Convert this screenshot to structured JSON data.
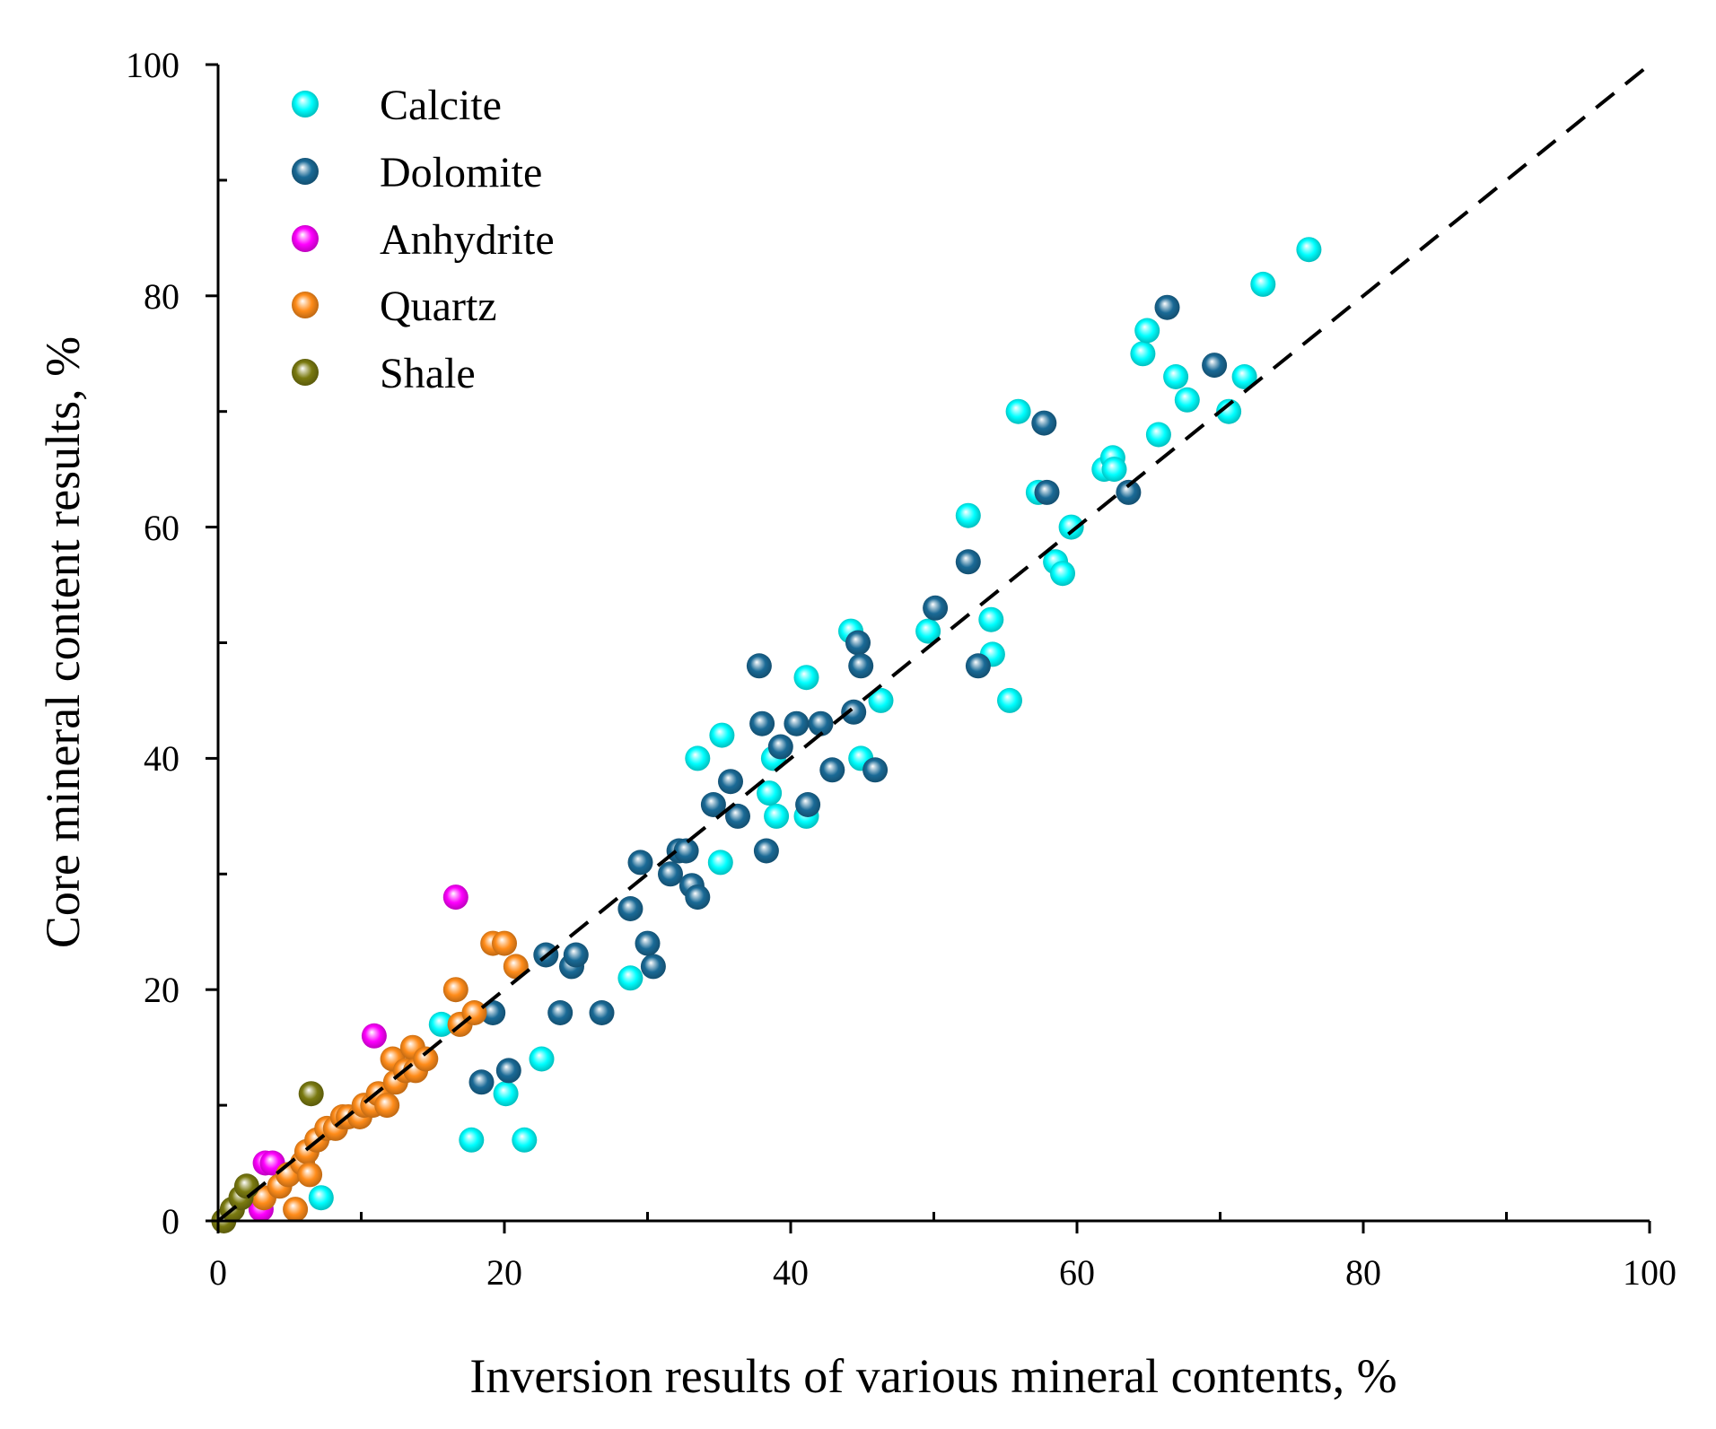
{
  "chart_data": {
    "type": "scatter",
    "xlabel": "Inversion results of various mineral contents, %",
    "ylabel": "Core mineral content results, %",
    "xlim": [
      0,
      100
    ],
    "ylim": [
      0,
      100
    ],
    "x_ticks": [
      "0",
      "20",
      "40",
      "60",
      "80",
      "100"
    ],
    "y_ticks": [
      "0",
      "20",
      "40",
      "60",
      "80",
      "100"
    ],
    "reference_line": {
      "style": "dashed",
      "color": "#000000",
      "x": [
        0,
        100
      ],
      "y": [
        0,
        100
      ]
    },
    "legend": {
      "position": "top-left"
    },
    "series": [
      {
        "name": "Calcite",
        "color": "#00ffff",
        "points": [
          [
            7.2,
            2
          ],
          [
            17.7,
            7
          ],
          [
            21.4,
            7
          ],
          [
            20.1,
            11
          ],
          [
            22.6,
            14
          ],
          [
            15.6,
            17
          ],
          [
            28.8,
            21
          ],
          [
            35.1,
            31
          ],
          [
            39.0,
            35
          ],
          [
            41.1,
            35
          ],
          [
            38.5,
            37
          ],
          [
            38.8,
            40
          ],
          [
            33.5,
            40
          ],
          [
            35.2,
            42
          ],
          [
            44.9,
            40
          ],
          [
            46.3,
            45
          ],
          [
            41.1,
            47
          ],
          [
            44.2,
            51
          ],
          [
            49.6,
            51
          ],
          [
            54.1,
            49
          ],
          [
            55.3,
            45
          ],
          [
            54.0,
            52
          ],
          [
            52.4,
            61
          ],
          [
            55.9,
            70
          ],
          [
            57.3,
            63
          ],
          [
            58.5,
            57
          ],
          [
            59.0,
            56
          ],
          [
            59.6,
            60
          ],
          [
            61.9,
            65
          ],
          [
            62.5,
            66
          ],
          [
            62.6,
            65
          ],
          [
            64.6,
            75
          ],
          [
            64.9,
            77
          ],
          [
            65.7,
            68
          ],
          [
            66.9,
            73
          ],
          [
            67.7,
            71
          ],
          [
            70.6,
            70
          ],
          [
            71.7,
            73
          ],
          [
            73.0,
            81
          ],
          [
            76.2,
            84
          ]
        ]
      },
      {
        "name": "Dolomite",
        "color": "#1a6a96",
        "points": [
          [
            18.4,
            12
          ],
          [
            20.3,
            13
          ],
          [
            19.2,
            18
          ],
          [
            23.9,
            18
          ],
          [
            26.8,
            18
          ],
          [
            22.9,
            23
          ],
          [
            24.7,
            22
          ],
          [
            25.0,
            23
          ],
          [
            30.4,
            22
          ],
          [
            30.0,
            24
          ],
          [
            28.8,
            27
          ],
          [
            29.5,
            31
          ],
          [
            31.6,
            30
          ],
          [
            32.2,
            32
          ],
          [
            32.7,
            32
          ],
          [
            33.1,
            29
          ],
          [
            33.5,
            28
          ],
          [
            34.6,
            36
          ],
          [
            35.8,
            38
          ],
          [
            36.3,
            35
          ],
          [
            38.3,
            32
          ],
          [
            38.0,
            43
          ],
          [
            37.8,
            48
          ],
          [
            39.3,
            41
          ],
          [
            40.4,
            43
          ],
          [
            41.2,
            36
          ],
          [
            42.1,
            43
          ],
          [
            42.9,
            39
          ],
          [
            44.4,
            44
          ],
          [
            44.7,
            50
          ],
          [
            44.9,
            48
          ],
          [
            45.9,
            39
          ],
          [
            50.1,
            53
          ],
          [
            52.4,
            57
          ],
          [
            53.1,
            48
          ],
          [
            57.7,
            69
          ],
          [
            57.9,
            63
          ],
          [
            63.6,
            63
          ],
          [
            66.3,
            79
          ],
          [
            69.6,
            74
          ]
        ]
      },
      {
        "name": "Anhydrite",
        "color": "#ff00ff",
        "points": [
          [
            3.0,
            1
          ],
          [
            3.3,
            5
          ],
          [
            3.8,
            5
          ],
          [
            10.9,
            16
          ],
          [
            16.6,
            28
          ]
        ]
      },
      {
        "name": "Quartz",
        "color": "#ff8c1a",
        "points": [
          [
            3.2,
            2
          ],
          [
            4.3,
            3
          ],
          [
            4.9,
            4
          ],
          [
            5.4,
            1
          ],
          [
            5.9,
            5
          ],
          [
            6.2,
            6
          ],
          [
            6.4,
            4
          ],
          [
            6.9,
            7
          ],
          [
            7.6,
            8
          ],
          [
            8.2,
            8
          ],
          [
            8.7,
            9
          ],
          [
            9.1,
            9
          ],
          [
            9.9,
            9
          ],
          [
            10.2,
            10
          ],
          [
            10.8,
            10
          ],
          [
            11.2,
            11
          ],
          [
            11.8,
            10
          ],
          [
            12.4,
            12
          ],
          [
            12.2,
            14
          ],
          [
            13.1,
            13
          ],
          [
            13.6,
            15
          ],
          [
            13.8,
            13
          ],
          [
            14.5,
            14
          ],
          [
            16.6,
            20
          ],
          [
            16.9,
            17
          ],
          [
            17.9,
            18
          ],
          [
            19.2,
            24
          ],
          [
            20.0,
            24
          ],
          [
            20.8,
            22
          ]
        ]
      },
      {
        "name": "Shale",
        "color": "#7a7a10",
        "points": [
          [
            0.4,
            0
          ],
          [
            1.0,
            1
          ],
          [
            1.6,
            2
          ],
          [
            2.0,
            3
          ],
          [
            6.5,
            11
          ]
        ]
      }
    ]
  }
}
